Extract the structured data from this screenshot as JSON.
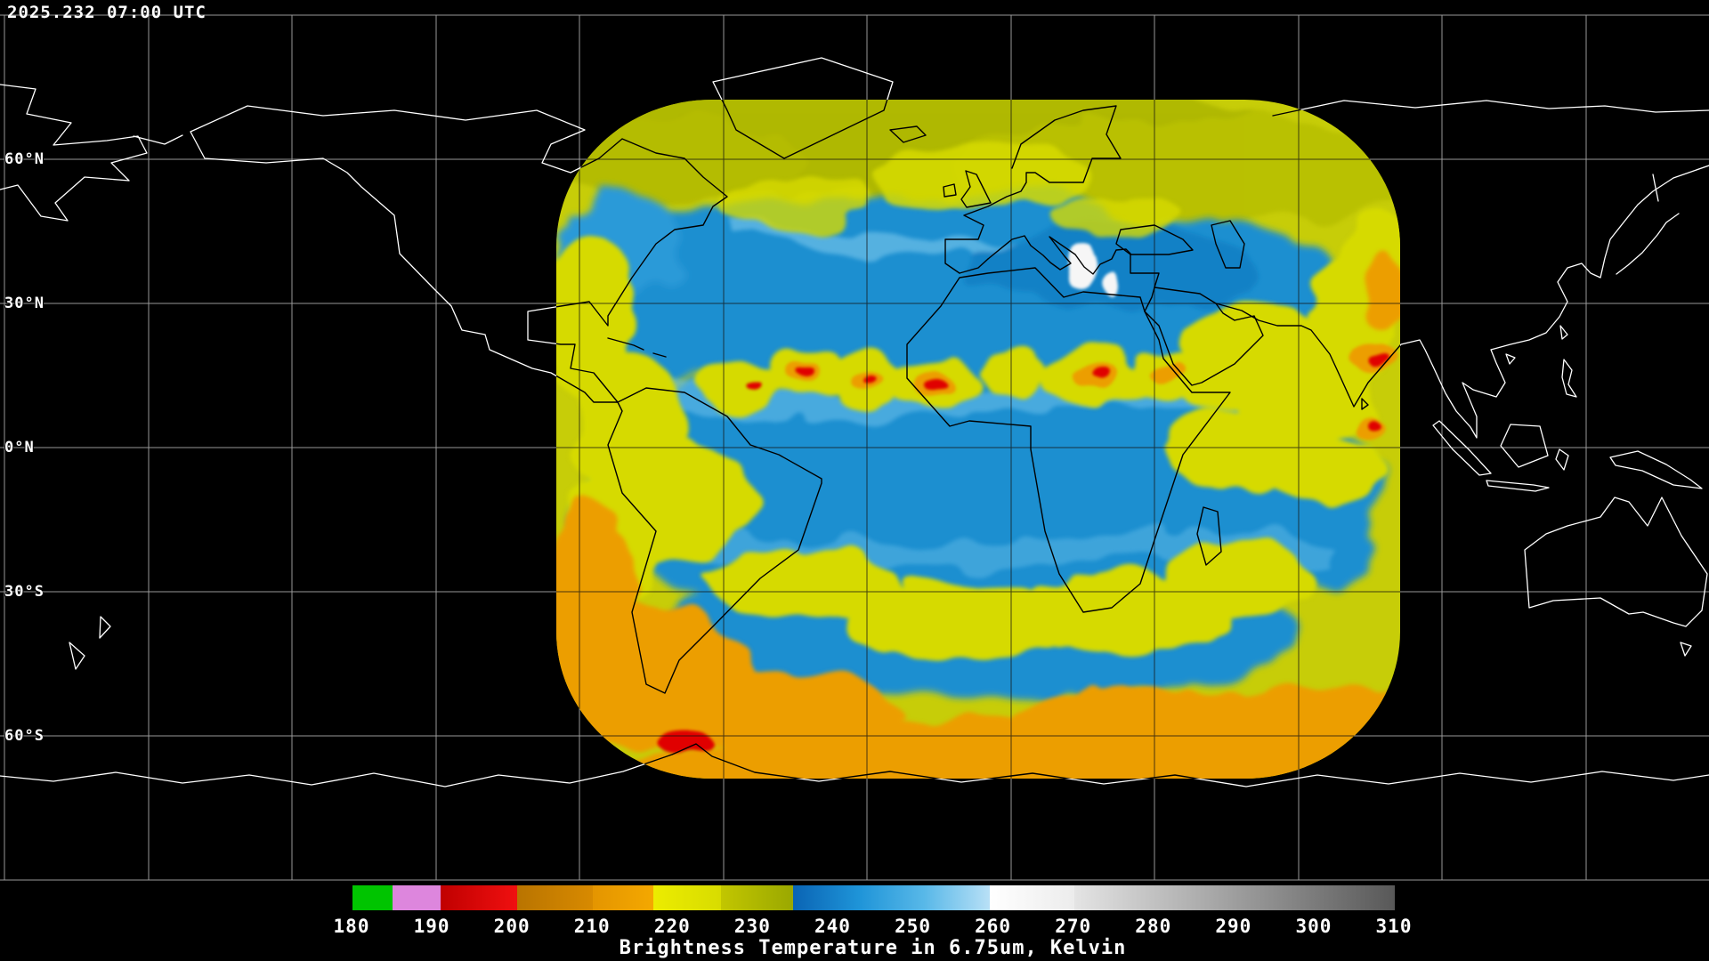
{
  "header": {
    "timestamp": "2025.232 07:00 UTC"
  },
  "map": {
    "latitude_labels": [
      "60°N",
      "30°N",
      "0°N",
      "30°S",
      "60°S"
    ],
    "graticule_color": "#b4b4b4",
    "coastline_color_outside": "#ffffff",
    "coastline_color_over_data": "#000000"
  },
  "satellite_palette": {
    "cold_red": "#e00000",
    "orange": "#ec9e00",
    "yellow": "#d6da00",
    "olive": "#aab400",
    "blue": "#1b8fd0",
    "light_blue": "#66bce8",
    "white_cloud": "#f6f6f6"
  },
  "colorbar": {
    "title": "Brightness Temperature in 6.75um, Kelvin",
    "range": {
      "min": 180,
      "max": 310
    },
    "ticks": [
      180,
      190,
      200,
      210,
      220,
      230,
      240,
      250,
      260,
      270,
      280,
      290,
      300,
      310
    ],
    "segments": [
      {
        "name": "green",
        "from": 180,
        "to": 185,
        "css": "#00c400"
      },
      {
        "name": "violet",
        "from": 185,
        "to": 191,
        "css": "#dd86dd"
      },
      {
        "name": "red",
        "from": 191,
        "to": 200.5,
        "css": "linear-gradient(90deg,#c00000,#f01010)"
      },
      {
        "name": "orange-dark",
        "from": 200.5,
        "to": 210,
        "css": "linear-gradient(90deg,#b97400,#d88a00)"
      },
      {
        "name": "orange",
        "from": 210,
        "to": 217.5,
        "css": "linear-gradient(90deg,#e49500,#f4a800)"
      },
      {
        "name": "yellow",
        "from": 217.5,
        "to": 226,
        "css": "linear-gradient(90deg,#ecec00,#d8dc00)"
      },
      {
        "name": "olive",
        "from": 226,
        "to": 235,
        "css": "linear-gradient(90deg,#c2c600,#9aa800)"
      },
      {
        "name": "blue",
        "from": 235,
        "to": 259.5,
        "css": "linear-gradient(90deg,#0a64b4,#1e94d8,#58b8e8,#b8e0f6)"
      },
      {
        "name": "white",
        "from": 259.5,
        "to": 270,
        "css": "linear-gradient(90deg,#ffffff,#ececec)"
      },
      {
        "name": "gray",
        "from": 270,
        "to": 310,
        "css": "linear-gradient(90deg,#e4e4e4,#585858)"
      }
    ]
  }
}
